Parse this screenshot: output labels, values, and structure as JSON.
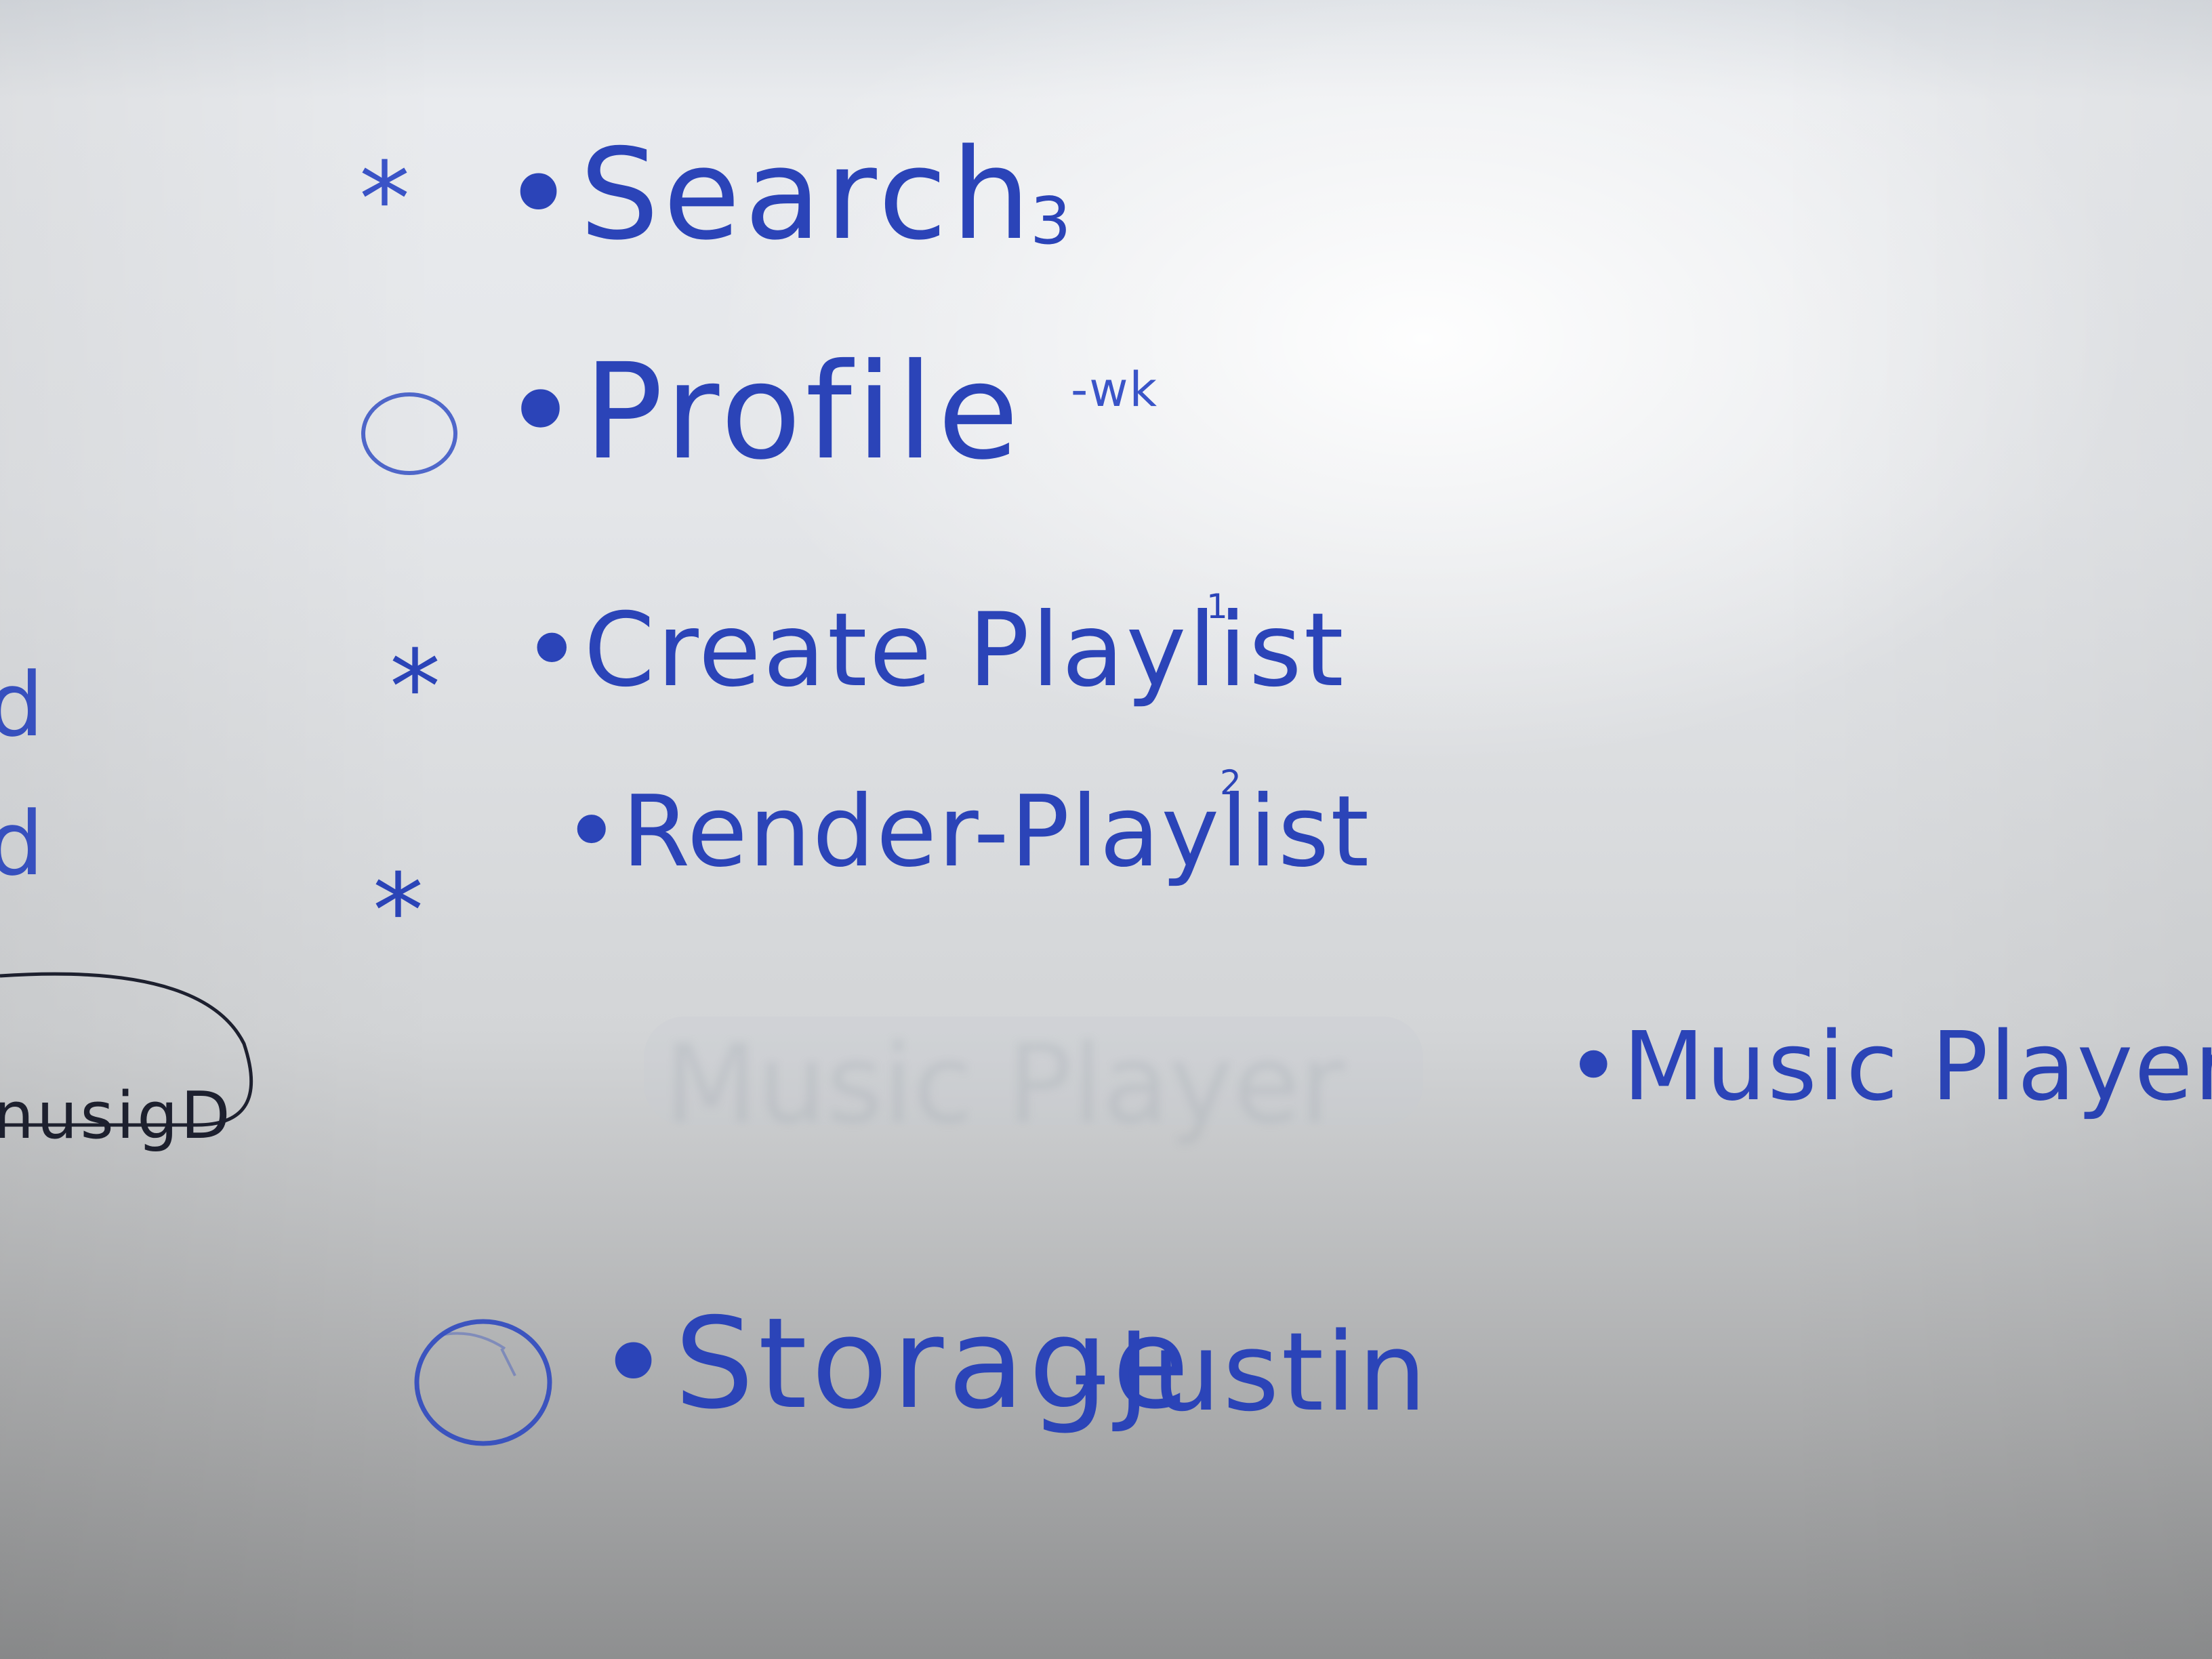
{
  "whiteboard": {
    "items": [
      {
        "marker": "*",
        "text": "•Search",
        "note": "3"
      },
      {
        "marker": "○",
        "text": "•Profile",
        "note": "-wk"
      },
      {
        "marker": "*",
        "text": "•Create Playlist",
        "note": "1"
      },
      {
        "marker": "*",
        "text": "•Render-Playlist",
        "note": "2"
      },
      {
        "marker": "",
        "text": "•Music Player",
        "note": ""
      },
      {
        "marker": "○",
        "text": "•Storage",
        "note": "-Justin"
      }
    ],
    "left_edge": {
      "letter_1": "d",
      "letter_2": "d",
      "bubble_text": "nusigD"
    },
    "ink_color": "#2b44b8",
    "black_ink_color": "#1e2130",
    "ghost_text": "Music Player"
  }
}
